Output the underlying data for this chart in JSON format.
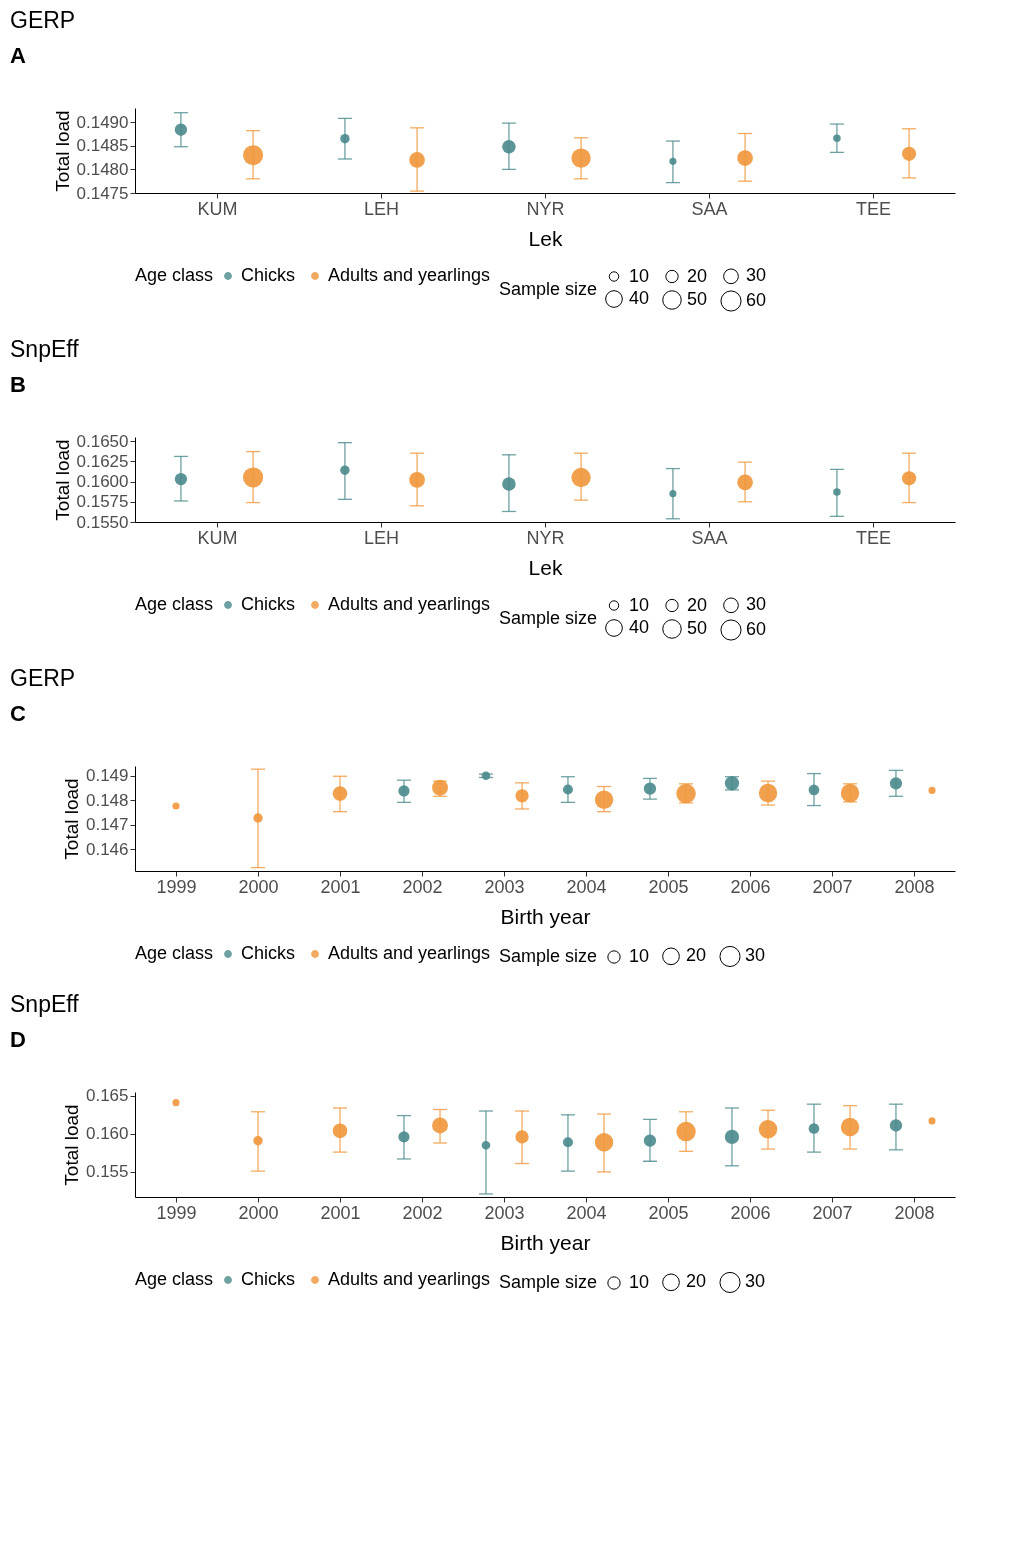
{
  "chart_data": [
    {
      "type": "scatter",
      "title": "GERP",
      "xlabel": "Lek",
      "ylabel": "Total load",
      "legend_title": "Age class",
      "annotations": [
        "A",
        "Sample size"
      ],
      "legend": "bottom",
      "grid": false,
      "marker": "circle",
      "categories": [
        "KUM",
        "LEH",
        "NYR",
        "SAA",
        "TEE"
      ],
      "ylim": [
        0.1475,
        0.1493
      ],
      "yticks": [
        {
          "value": 0.1475,
          "label": "0.1475"
        },
        {
          "value": 0.148,
          "label": "0.1480"
        },
        {
          "value": 0.1485,
          "label": "0.1485"
        },
        {
          "value": 0.149,
          "label": "0.1490"
        }
      ],
      "size_legend": [
        10,
        20,
        30,
        40,
        50,
        60
      ],
      "series": [
        {
          "name": "Chicks",
          "color": "#4a8a8c",
          "values": [
            0.14884,
            0.14865,
            0.14848,
            0.14817,
            0.14866
          ],
          "errors": [
            [
              0.14848,
              0.1492
            ],
            [
              0.14822,
              0.14908
            ],
            [
              0.148,
              0.14898
            ],
            [
              0.14772,
              0.1486
            ],
            [
              0.14836,
              0.14896
            ]
          ],
          "sizes": [
            20,
            10,
            25,
            4,
            5
          ]
        },
        {
          "name": "Adults and yearlings",
          "color": "#f0963a",
          "values": [
            0.1483,
            0.1482,
            0.14824,
            0.14824,
            0.14833
          ],
          "errors": [
            [
              0.1478,
              0.14882
            ],
            [
              0.14754,
              0.14888
            ],
            [
              0.1478,
              0.14867
            ],
            [
              0.14775,
              0.14876
            ],
            [
              0.14782,
              0.14886
            ]
          ],
          "sizes": [
            60,
            35,
            55,
            35,
            28
          ]
        }
      ]
    },
    {
      "type": "scatter",
      "title": "SnpEff",
      "xlabel": "Lek",
      "ylabel": "Total load",
      "legend_title": "Age class",
      "annotations": [
        "B",
        "Sample size"
      ],
      "legend": "bottom",
      "grid": false,
      "marker": "circle",
      "categories": [
        "KUM",
        "LEH",
        "NYR",
        "SAA",
        "TEE"
      ],
      "ylim": [
        0.155,
        0.1655
      ],
      "yticks": [
        {
          "value": 0.155,
          "label": "0.1550"
        },
        0.1575,
        {
          "value": 0.16,
          "label": "0.1600"
        },
        0.1625,
        {
          "value": 0.165,
          "label": "0.1650"
        }
      ],
      "size_legend": [
        10,
        20,
        30,
        40,
        50,
        60
      ],
      "series": [
        {
          "name": "Chicks",
          "color": "#4a8a8c",
          "values": [
            0.1603,
            0.1614,
            0.1597,
            0.1585,
            0.1587
          ],
          "errors": [
            [
              0.1576,
              0.1631
            ],
            [
              0.1578,
              0.1648
            ],
            [
              0.1563,
              0.1633
            ],
            [
              0.1554,
              0.1616
            ],
            [
              0.1557,
              0.1615
            ]
          ],
          "sizes": [
            20,
            10,
            25,
            4,
            5
          ]
        },
        {
          "name": "Adults and yearlings",
          "color": "#f0963a",
          "values": [
            0.1605,
            0.1602,
            0.1605,
            0.1599,
            0.1604
          ],
          "errors": [
            [
              0.1574,
              0.1637
            ],
            [
              0.157,
              0.1635
            ],
            [
              0.1577,
              0.1635
            ],
            [
              0.1575,
              0.1624
            ],
            [
              0.1574,
              0.1635
            ]
          ],
          "sizes": [
            60,
            35,
            55,
            35,
            28
          ]
        }
      ]
    },
    {
      "type": "scatter",
      "title": "GERP",
      "xlabel": "Birth year",
      "ylabel": "Total load",
      "legend_title": "Age class",
      "annotations": [
        "C",
        "Sample size"
      ],
      "legend": "bottom",
      "grid": false,
      "marker": "circle",
      "categories": [
        "1999",
        "2000",
        "2001",
        "2002",
        "2003",
        "2004",
        "2005",
        "2006",
        "2007",
        "2008"
      ],
      "ylim": [
        0.1451,
        0.1494
      ],
      "yticks": [
        0.146,
        0.147,
        0.148,
        0.149
      ],
      "size_legend": [
        10,
        20,
        30
      ],
      "series": [
        {
          "name": "Chicks",
          "color": "#4a8a8c",
          "values": [
            null,
            null,
            null,
            0.14838,
            0.149,
            0.14844,
            0.14847,
            0.14869,
            0.14842,
            0.14869
          ],
          "errors": [
            null,
            null,
            null,
            [
              0.14791,
              0.14882
            ],
            [
              0.14893,
              0.14907
            ],
            [
              0.14791,
              0.14896
            ],
            [
              0.14804,
              0.14889
            ],
            [
              0.14842,
              0.14896
            ],
            [
              0.14778,
              0.14909
            ],
            [
              0.14816,
              0.14922
            ]
          ],
          "sizes": [
            null,
            null,
            null,
            8,
            4,
            6,
            10,
            14,
            7,
            10
          ]
        },
        {
          "name": "Adults and yearlings",
          "color": "#f0963a",
          "values": [
            0.14776,
            0.14727,
            0.14827,
            0.14851,
            0.14818,
            0.14802,
            0.14827,
            0.14829,
            0.14829,
            0.1484
          ],
          "errors": [
            null,
            [
              0.14524,
              0.14927
            ],
            [
              0.14753,
              0.14898
            ],
            [
              0.14816,
              0.14878
            ],
            [
              0.14764,
              0.14871
            ],
            [
              0.14753,
              0.14856
            ],
            [
              0.14789,
              0.14867
            ],
            [
              0.1478,
              0.14878
            ],
            [
              0.14793,
              0.14867
            ],
            null
          ],
          "sizes": [
            2,
            5,
            15,
            18,
            12,
            25,
            28,
            25,
            25,
            2
          ]
        }
      ]
    },
    {
      "type": "scatter",
      "title": "SnpEff",
      "xlabel": "Birth year",
      "ylabel": "Total load",
      "legend_title": "Age class",
      "annotations": [
        "D",
        "Sample size"
      ],
      "legend": "bottom",
      "grid": false,
      "marker": "circle",
      "categories": [
        "1999",
        "2000",
        "2001",
        "2002",
        "2003",
        "2004",
        "2005",
        "2006",
        "2007",
        "2008"
      ],
      "ylim": [
        0.1517,
        0.1655
      ],
      "yticks": [
        0.155,
        {
          "value": 0.16,
          "label": "0.160"
        },
        0.165
      ],
      "size_legend": [
        10,
        20,
        30
      ],
      "series": [
        {
          "name": "Chicks",
          "color": "#4a8a8c",
          "values": [
            null,
            null,
            null,
            0.1596,
            0.1585,
            0.1589,
            0.1591,
            0.1596,
            0.1607,
            0.1611
          ],
          "errors": [
            null,
            null,
            null,
            [
              0.1567,
              0.1624
            ],
            [
              0.1521,
              0.163
            ],
            [
              0.1551,
              0.1625
            ],
            [
              0.1564,
              0.1619
            ],
            [
              0.1558,
              0.1634
            ],
            [
              0.1576,
              0.1639
            ],
            [
              0.1579,
              0.1639
            ]
          ],
          "sizes": [
            null,
            null,
            null,
            8,
            4,
            6,
            10,
            14,
            7,
            10
          ]
        },
        {
          "name": "Adults and yearlings",
          "color": "#f0963a",
          "values": [
            0.1641,
            0.1591,
            0.1604,
            0.1611,
            0.1596,
            0.1589,
            0.1603,
            0.1606,
            0.1609,
            0.1617
          ],
          "errors": [
            null,
            [
              0.1551,
              0.1629
            ],
            [
              0.1576,
              0.1634
            ],
            [
              0.1588,
              0.1632
            ],
            [
              0.1561,
              0.163
            ],
            [
              0.155,
              0.1626
            ],
            [
              0.1577,
              0.1629
            ],
            [
              0.158,
              0.1631
            ],
            [
              0.158,
              0.1637
            ],
            null
          ],
          "sizes": [
            2,
            5,
            15,
            18,
            12,
            25,
            28,
            25,
            25,
            2
          ]
        }
      ]
    }
  ]
}
